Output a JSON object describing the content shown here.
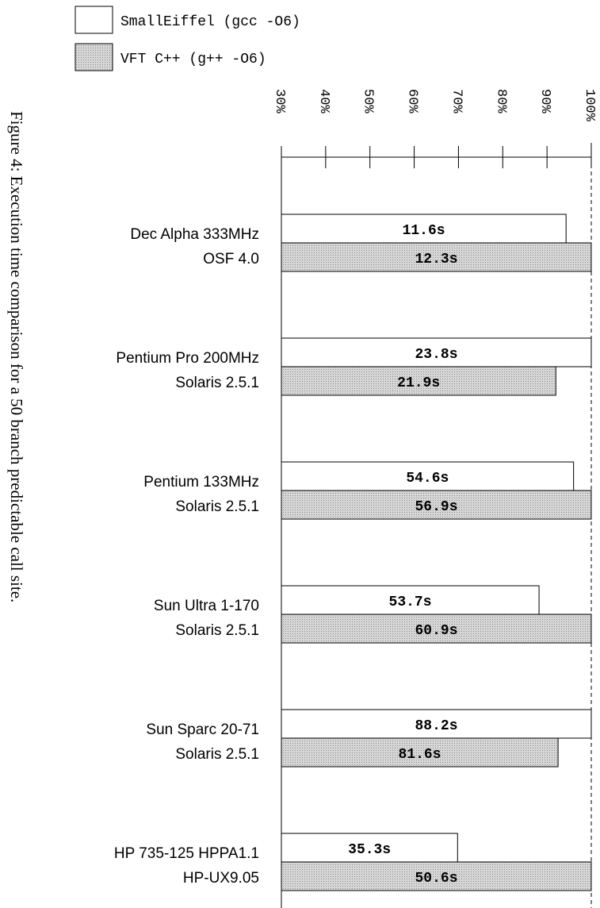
{
  "caption": "Figure 4: Execution time comparison for a 50 branch predictable call site.",
  "colors": {
    "bar_fill_smalleiffel": "#ffffff",
    "bar_fill_vft": "#cfcfcf",
    "stroke": "#000000"
  },
  "chart_data": {
    "type": "bar",
    "orientation": "horizontal",
    "xlim": [
      30,
      100
    ],
    "tick_values": [
      30,
      40,
      50,
      60,
      70,
      80,
      90,
      100
    ],
    "tick_labels": [
      "30%",
      "40%",
      "50%",
      "60%",
      "70%",
      "80%",
      "90%",
      "100%"
    ],
    "reference_line": "dashed at 100%",
    "legend_position": "top-left",
    "legend": [
      "SmallEiffel (gcc -O6)",
      "VFT C++ (g++ -O6)"
    ],
    "categories": [
      [
        "Dec Alpha 333MHz",
        "OSF 4.0"
      ],
      [
        "Pentium Pro 200MHz",
        "Solaris 2.5.1"
      ],
      [
        "Pentium 133MHz",
        "Solaris 2.5.1"
      ],
      [
        "Sun Ultra 1-170",
        "Solaris 2.5.1"
      ],
      [
        "Sun Sparc 20-71",
        "Solaris 2.5.1"
      ],
      [
        "HP 735-125 HPPA1.1",
        "HP-UX9.05"
      ]
    ],
    "series": [
      {
        "name": "SmallEiffel (gcc -O6)",
        "values": [
          94.3,
          100,
          96,
          88.2,
          100,
          69.8
        ],
        "labels": [
          "11.6s",
          "23.8s",
          "54.6s",
          "53.7s",
          "88.2s",
          "35.3s"
        ]
      },
      {
        "name": "VFT C++ (g++ -O6)",
        "values": [
          100,
          92,
          100,
          100,
          92.5,
          100
        ],
        "labels": [
          "12.3s",
          "21.9s",
          "56.9s",
          "60.9s",
          "81.6s",
          "50.6s"
        ]
      }
    ]
  }
}
